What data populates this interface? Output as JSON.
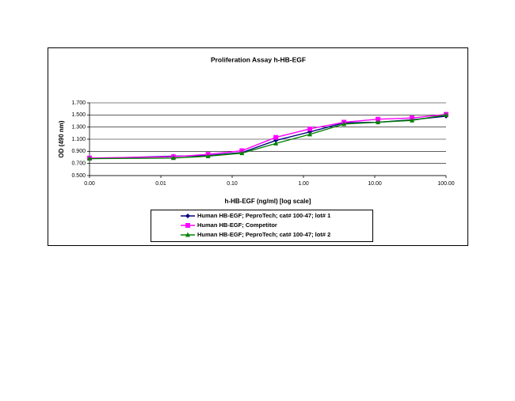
{
  "chart_data": {
    "type": "line",
    "title": "Proliferation Assay h-HB-EGF",
    "x_label": "h-HB-EGF (ng/ml) [log scale]",
    "y_label": "OD (490 nm)",
    "x_scale": "log",
    "grid": true,
    "x": [
      0.001,
      0.015,
      0.046,
      0.137,
      0.41,
      1.23,
      3.7,
      11.1,
      33.3,
      100
    ],
    "series": [
      {
        "name": "Human HB-EGF; PeproTech; cat# 100-47; lot# 1",
        "color": "#000080",
        "marker": "diamond",
        "values": [
          0.78,
          0.82,
          0.83,
          0.88,
          1.08,
          1.22,
          1.37,
          1.38,
          1.42,
          1.48
        ]
      },
      {
        "name": "Human HB-EGF; Competitor",
        "color": "#ff00ff",
        "marker": "square",
        "values": [
          0.79,
          0.81,
          0.85,
          0.91,
          1.13,
          1.27,
          1.38,
          1.43,
          1.45,
          1.51
        ]
      },
      {
        "name": "Human HB-EGF; PeproTech; cat# 100-47; lot# 2",
        "color": "#008000",
        "marker": "triangle",
        "values": [
          0.78,
          0.79,
          0.82,
          0.87,
          1.03,
          1.18,
          1.35,
          1.38,
          1.41,
          1.5
        ]
      }
    ],
    "xlim": [
      0.001,
      100
    ],
    "xticks": [
      {
        "value": 0.001,
        "label": "0.00"
      },
      {
        "value": 0.01,
        "label": "0.01"
      },
      {
        "value": 0.1,
        "label": "0.10"
      },
      {
        "value": 1,
        "label": "1.00"
      },
      {
        "value": 10,
        "label": "10.00"
      },
      {
        "value": 100,
        "label": "100.00"
      }
    ],
    "ylim": [
      0.5,
      1.7
    ],
    "yticks": [
      {
        "value": 0.5,
        "label": "0.500"
      },
      {
        "value": 0.7,
        "label": "0.700"
      },
      {
        "value": 0.9,
        "label": "0.900"
      },
      {
        "value": 1.1,
        "label": "1.100"
      },
      {
        "value": 1.3,
        "label": "1.300"
      },
      {
        "value": 1.5,
        "label": "1.500"
      },
      {
        "value": 1.7,
        "label": "1.700"
      }
    ]
  }
}
